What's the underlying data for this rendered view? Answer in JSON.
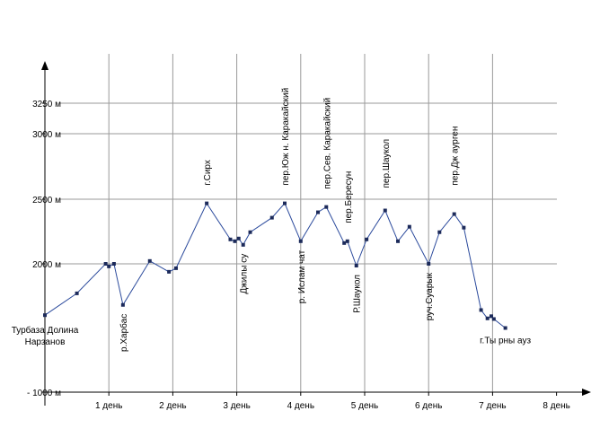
{
  "chart_data": {
    "type": "line",
    "title": "",
    "xlabel": "",
    "ylabel": "",
    "x_ticks": [
      {
        "x": 1,
        "label": "1 день"
      },
      {
        "x": 2,
        "label": "2 день"
      },
      {
        "x": 3,
        "label": "3 день"
      },
      {
        "x": 4,
        "label": "4 день"
      },
      {
        "x": 5,
        "label": "5 день"
      },
      {
        "x": 6,
        "label": "6 день"
      },
      {
        "x": 7,
        "label": "7 день"
      },
      {
        "x": 8,
        "label": "8 день"
      }
    ],
    "y_ticks": [
      {
        "y": 1000,
        "label": "- 1000  м"
      },
      {
        "y": 2000,
        "label": "2000  м"
      },
      {
        "y": 2500,
        "label": "2500  м"
      },
      {
        "y": 3000,
        "label": "3000  м"
      },
      {
        "y": 3250,
        "label": "3250  м"
      }
    ],
    "xlim": [
      0,
      9
    ],
    "grid": true,
    "series": [
      {
        "color": "#2b4a9c",
        "points": [
          {
            "x": 0,
            "y": 1600
          },
          {
            "x": 0.5,
            "y": 1770
          },
          {
            "x": 0.95,
            "y": 2000
          },
          {
            "x": 1.0,
            "y": 1980
          },
          {
            "x": 1.08,
            "y": 2000
          },
          {
            "x": 1.22,
            "y": 1680
          },
          {
            "x": 1.64,
            "y": 2022
          },
          {
            "x": 1.94,
            "y": 1938
          },
          {
            "x": 2.05,
            "y": 1966
          },
          {
            "x": 2.53,
            "y": 2468
          },
          {
            "x": 2.9,
            "y": 2189
          },
          {
            "x": 2.97,
            "y": 2175
          },
          {
            "x": 3.03,
            "y": 2196
          },
          {
            "x": 3.1,
            "y": 2147
          },
          {
            "x": 3.21,
            "y": 2245
          },
          {
            "x": 3.55,
            "y": 2357
          },
          {
            "x": 3.75,
            "y": 2468
          },
          {
            "x": 4.0,
            "y": 2175
          },
          {
            "x": 4.27,
            "y": 2399
          },
          {
            "x": 4.4,
            "y": 2440
          },
          {
            "x": 4.68,
            "y": 2161
          },
          {
            "x": 4.73,
            "y": 2175
          },
          {
            "x": 4.87,
            "y": 1986
          },
          {
            "x": 5.03,
            "y": 2189
          },
          {
            "x": 5.32,
            "y": 2413
          },
          {
            "x": 5.52,
            "y": 2175
          },
          {
            "x": 5.7,
            "y": 2287
          },
          {
            "x": 6.0,
            "y": 2000
          },
          {
            "x": 6.17,
            "y": 2245
          },
          {
            "x": 6.4,
            "y": 2385
          },
          {
            "x": 6.55,
            "y": 2280
          },
          {
            "x": 6.82,
            "y": 1640
          },
          {
            "x": 6.92,
            "y": 1575
          },
          {
            "x": 6.98,
            "y": 1592
          },
          {
            "x": 7.02,
            "y": 1570
          },
          {
            "x": 7.2,
            "y": 1500
          }
        ]
      }
    ],
    "annotations": [
      {
        "text": "Турбаза Долина",
        "x": 0,
        "y": 1600,
        "orient": "horizontal"
      },
      {
        "text": "Нарзанов",
        "x": 0,
        "y": 1600,
        "orient": "horizontal"
      },
      {
        "text": "р.Харбас",
        "x": 1.22,
        "y": 1680,
        "orient": "vertical"
      },
      {
        "text": "г.Сирх",
        "x": 2.53,
        "y": 2468,
        "orient": "vertical"
      },
      {
        "text": "Джилы су",
        "x": 3.1,
        "y": 2147,
        "orient": "vertical"
      },
      {
        "text": "пер.Юж н. Каракайский",
        "x": 3.75,
        "y": 2468,
        "orient": "vertical"
      },
      {
        "text": "р. Ислам чат",
        "x": 4.0,
        "y": 2175,
        "orient": "vertical"
      },
      {
        "text": "пер.Сев. Каракайский",
        "x": 4.4,
        "y": 2440,
        "orient": "vertical"
      },
      {
        "text": "пер.Бересун",
        "x": 4.73,
        "y": 2175,
        "orient": "vertical"
      },
      {
        "text": "Р.Шаукол",
        "x": 4.87,
        "y": 1986,
        "orient": "vertical"
      },
      {
        "text": "пер.Шаукол",
        "x": 5.32,
        "y": 2413,
        "orient": "vertical"
      },
      {
        "text": "руч.Суарык",
        "x": 6.0,
        "y": 2000,
        "orient": "vertical"
      },
      {
        "text": "пер.Дж аурген",
        "x": 6.4,
        "y": 2385,
        "orient": "vertical"
      },
      {
        "text": "г.Ты рны ауз",
        "x": 7.2,
        "y": 1500,
        "orient": "horizontal"
      }
    ]
  }
}
